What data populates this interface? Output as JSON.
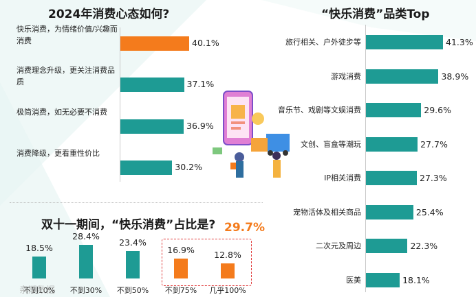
{
  "colors": {
    "teal": "#1e9b94",
    "orange": "#f47b1c",
    "red": "#e03a3a"
  },
  "left_top": {
    "title": "2024年消费心态如何?"
  },
  "right": {
    "title": "“快乐消费”品类Top"
  },
  "bottom": {
    "title": "双十一期间，“快乐消费”占比是?",
    "highlight": "29.7%"
  },
  "watermark": "亲期数据",
  "chart_data": [
    {
      "type": "bar",
      "orientation": "horizontal",
      "title": "2024年消费心态如何?",
      "categories": [
        "快乐消费，为情绪价值/兴趣而消费",
        "消费理念升级，更关注消费品质",
        "极简消费，如无必要不消费",
        "消费降级，更看重性价比"
      ],
      "values": [
        40.1,
        37.1,
        36.9,
        30.2
      ],
      "labels": [
        "40.1%",
        "37.1%",
        "36.9%",
        "30.2%"
      ],
      "colors": [
        "#f47b1c",
        "#1e9b94",
        "#1e9b94",
        "#1e9b94"
      ]
    },
    {
      "type": "bar",
      "orientation": "horizontal",
      "title": "“快乐消费”品类Top",
      "categories": [
        "旅行相关、户外徒步等",
        "游戏消费",
        "音乐节、戏剧等文娱消费",
        "文创、盲盒等潮玩",
        "IP相关消费",
        "宠物活体及相关商品",
        "二次元及周边",
        "医美"
      ],
      "values": [
        41.3,
        38.9,
        29.6,
        27.7,
        27.3,
        25.4,
        22.3,
        18.1
      ],
      "labels": [
        "41.3%",
        "38.9%",
        "29.6%",
        "27.7%",
        "27.3%",
        "25.4%",
        "22.3%",
        "18.1%"
      ]
    },
    {
      "type": "bar",
      "orientation": "vertical",
      "title": "双十一期间，“快乐消费”占比是?",
      "categories": [
        "不到10%",
        "不到30%",
        "不到50%",
        "不到75%",
        "几乎100%"
      ],
      "values": [
        18.5,
        28.4,
        23.4,
        16.9,
        12.8
      ],
      "labels": [
        "18.5%",
        "28.4%",
        "23.4%",
        "16.9%",
        "12.8%"
      ],
      "colors": [
        "#1e9b94",
        "#1e9b94",
        "#1e9b94",
        "#f47b1c",
        "#f47b1c"
      ],
      "highlight_total": "29.7%"
    }
  ]
}
